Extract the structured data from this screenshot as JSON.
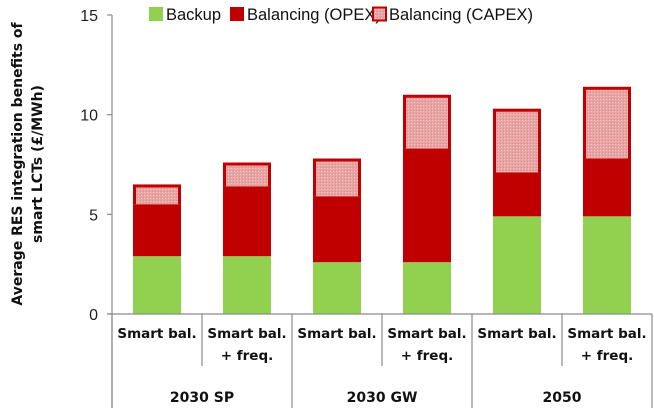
{
  "chart_data": {
    "type": "bar",
    "stacked": true,
    "title": "",
    "xlabel": "",
    "ylabel": "Average RES integration benefits of smart LCTs (£/MWh)",
    "ylabel_lines": [
      "Average RES integration benefits of",
      "smart LCTs (£/MWh)"
    ],
    "ylim": [
      0,
      15
    ],
    "yticks": [
      0,
      5,
      10,
      15
    ],
    "grid": false,
    "legend_position": "top",
    "categories": [
      {
        "label_lines": [
          "Smart bal."
        ],
        "group": "2030 SP"
      },
      {
        "label_lines": [
          "Smart bal.",
          "+ freq."
        ],
        "group": "2030 SP"
      },
      {
        "label_lines": [
          "Smart bal."
        ],
        "group": "2030 GW"
      },
      {
        "label_lines": [
          "Smart bal.",
          "+ freq."
        ],
        "group": "2030 GW"
      },
      {
        "label_lines": [
          "Smart bal."
        ],
        "group": "2050"
      },
      {
        "label_lines": [
          "Smart bal.",
          "+ freq."
        ],
        "group": "2050"
      }
    ],
    "groups": [
      "2030 SP",
      "2030 GW",
      "2050"
    ],
    "series": [
      {
        "name": "Backup",
        "color": "#92d050",
        "values": [
          2.9,
          2.9,
          2.6,
          2.6,
          4.9,
          4.9
        ]
      },
      {
        "name": "Balancing (OPEX)",
        "color": "#c00000",
        "values": [
          2.6,
          3.5,
          3.3,
          5.7,
          2.2,
          2.9
        ]
      },
      {
        "name": "Balancing (CAPEX)",
        "color": "#e6a0a0",
        "border": "#c00000",
        "values": [
          1.0,
          1.2,
          1.9,
          2.7,
          3.2,
          3.6
        ]
      }
    ]
  }
}
